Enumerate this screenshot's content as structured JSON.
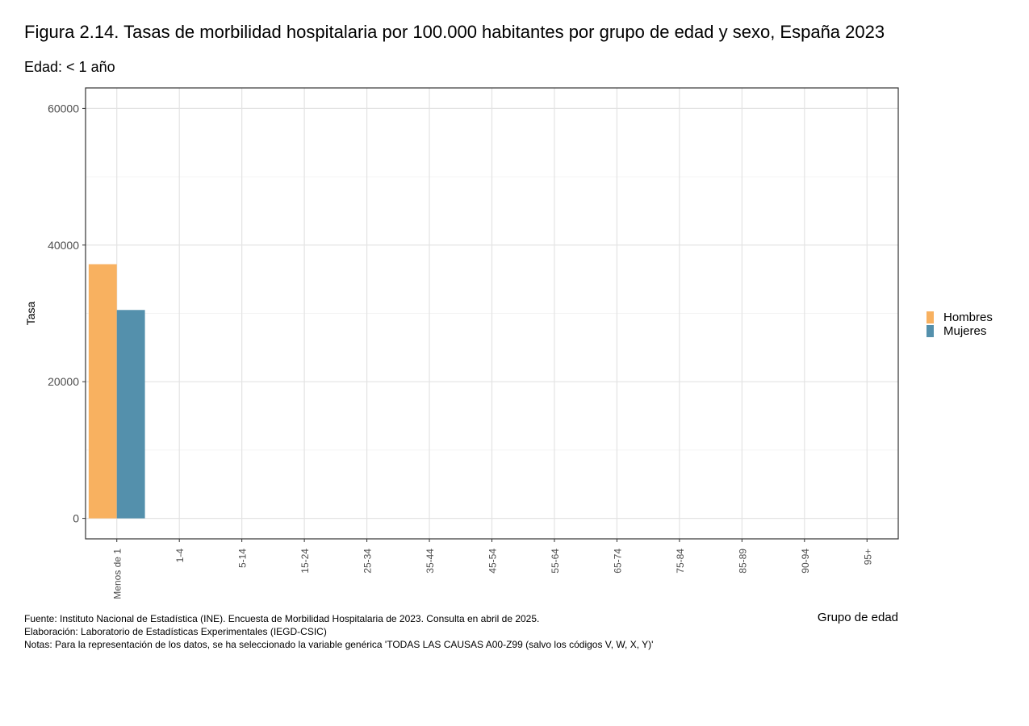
{
  "title": "Figura 2.14. Tasas de morbilidad hospitalaria por 100.000 habitantes por grupo de edad y sexo, España 2023",
  "subtitle": "Edad: < 1 año",
  "caption": {
    "source": "Fuente: Instituto Nacional de Estadística (INE). Encuesta de Morbilidad Hospitalaria de 2023. Consulta en abril de 2025.",
    "elaboration": "Elaboración: Laboratorio de Estadísticas Experimentales (IEGD-CSIC)",
    "notes": "Notas: Para la representación de los datos, se ha seleccionado la variable genérica 'TODAS LAS CAUSAS A00-Z99 (salvo los códigos V, W, X, Y)'"
  },
  "chart_data": {
    "type": "bar",
    "xlabel": "Grupo de edad",
    "ylabel": "Tasa",
    "ylim": [
      -3000,
      63000
    ],
    "yticks": [
      0,
      20000,
      40000,
      60000
    ],
    "grid": true,
    "legend_position": "right",
    "categories": [
      "Menos de 1",
      "1-4",
      "5-14",
      "15-24",
      "25-34",
      "35-44",
      "45-54",
      "55-64",
      "65-74",
      "75-84",
      "85-89",
      "90-94",
      "95+"
    ],
    "series": [
      {
        "name": "Hombres",
        "color": "#F8B160",
        "values": [
          37200,
          null,
          null,
          null,
          null,
          null,
          null,
          null,
          null,
          null,
          null,
          null,
          null
        ]
      },
      {
        "name": "Mujeres",
        "color": "#5490AC",
        "values": [
          30500,
          null,
          null,
          null,
          null,
          null,
          null,
          null,
          null,
          null,
          null,
          null,
          null
        ]
      }
    ]
  }
}
